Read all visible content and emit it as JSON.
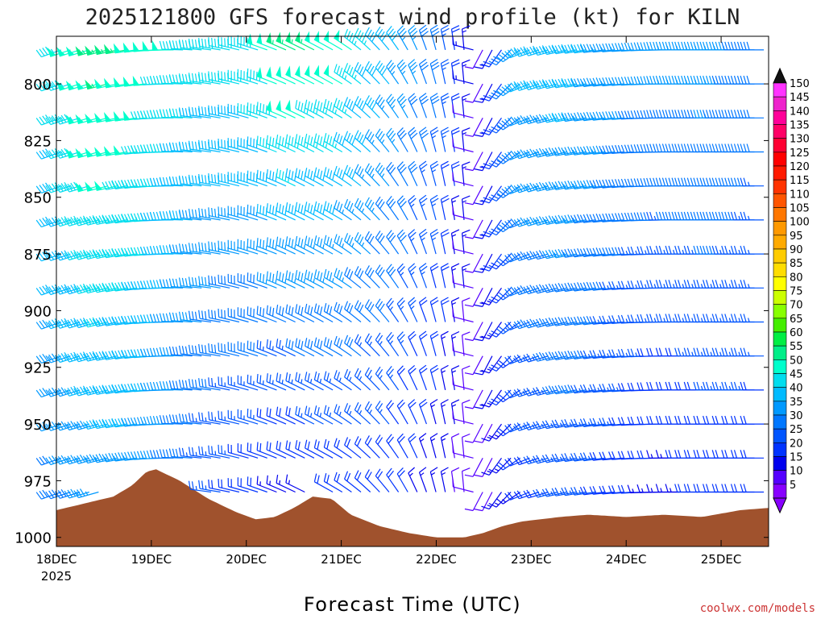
{
  "chart_data": {
    "type": "wind-barb-time-height",
    "title": "2025121800 GFS forecast wind profile (kt) for KILN",
    "xlabel": "Forecast Time (UTC)",
    "credit": "coolwx.com/models",
    "x_ticks": [
      "18DEC",
      "19DEC",
      "20DEC",
      "21DEC",
      "22DEC",
      "23DEC",
      "24DEC",
      "25DEC"
    ],
    "x_year": "2025",
    "y_ticks": [
      "800",
      "825",
      "850",
      "875",
      "900",
      "925",
      "950",
      "975",
      "1000"
    ],
    "y_tick_values": [
      800,
      825,
      850,
      875,
      900,
      925,
      950,
      975,
      1000
    ],
    "ylim_hpa": [
      779,
      1004
    ],
    "xlim_days": [
      0,
      7.5
    ],
    "colorbar_labels": [
      "150",
      "145",
      "140",
      "135",
      "130",
      "125",
      "120",
      "115",
      "110",
      "105",
      "100",
      "95",
      "90",
      "85",
      "80",
      "75",
      "70",
      "65",
      "60",
      "55",
      "50",
      "45",
      "40",
      "35",
      "30",
      "25",
      "20",
      "15",
      "10",
      "5"
    ],
    "colorbar_colors": [
      "#ff33ff",
      "#ee22cc",
      "#ff0099",
      "#ff0066",
      "#ff0033",
      "#ff0000",
      "#ff1a00",
      "#ff3300",
      "#ff5500",
      "#ff7700",
      "#ff9900",
      "#ffaa00",
      "#ffcc00",
      "#ffdd00",
      "#ffff00",
      "#ccff00",
      "#88ff00",
      "#44ee00",
      "#00ee44",
      "#00ee88",
      "#00ffcc",
      "#00ddee",
      "#00bbff",
      "#0099ff",
      "#0077ff",
      "#0055ff",
      "#0033ff",
      "#0000ee",
      "#5500ff",
      "#8800ff"
    ],
    "ground_color": "#a0522d",
    "surface_pressure_profile": {
      "days": [
        0.0,
        0.3,
        0.6,
        0.8,
        0.95,
        1.05,
        1.3,
        1.6,
        1.9,
        2.1,
        2.3,
        2.5,
        2.7,
        2.9,
        3.1,
        3.4,
        3.7,
        4.0,
        4.3,
        4.5,
        4.7,
        4.9,
        5.1,
        5.3,
        5.6,
        6.0,
        6.4,
        6.8,
        7.2,
        7.5
      ],
      "hpa": [
        988,
        985,
        982,
        977,
        971,
        970,
        975,
        983,
        989,
        992,
        991,
        987,
        982,
        983,
        990,
        995,
        998,
        1000,
        1000,
        998,
        995,
        993,
        992,
        991,
        990,
        991,
        990,
        991,
        988,
        987
      ]
    },
    "wind_profile_rows_hpa": [
      785,
      800,
      815,
      830,
      845,
      860,
      875,
      890,
      905,
      920,
      935,
      950,
      965,
      980
    ],
    "wind_direction_deg_by_period": {
      "days": [
        0.0,
        0.5,
        1.0,
        1.5,
        2.0,
        2.5,
        3.0,
        3.5,
        4.0,
        4.3,
        4.5,
        4.8,
        5.0,
        5.5,
        6.0,
        6.5,
        7.0,
        7.5
      ],
      "deg": [
        250,
        255,
        265,
        275,
        285,
        295,
        300,
        320,
        345,
        355,
        200,
        225,
        250,
        260,
        265,
        270,
        270,
        270
      ]
    },
    "wind_speed_kt_by_period": {
      "days": [
        0.0,
        0.5,
        1.0,
        1.5,
        2.0,
        2.5,
        3.0,
        3.5,
        4.0,
        4.3,
        4.5,
        4.8,
        5.0,
        5.5,
        6.0,
        6.5,
        7.0,
        7.5
      ],
      "kt_top": [
        45,
        55,
        50,
        45,
        45,
        55,
        50,
        40,
        30,
        15,
        10,
        30,
        40,
        40,
        35,
        35,
        35,
        30
      ],
      "kt_bottom": [
        30,
        35,
        35,
        25,
        20,
        15,
        20,
        20,
        15,
        10,
        10,
        15,
        20,
        25,
        20,
        15,
        20,
        20
      ]
    }
  }
}
